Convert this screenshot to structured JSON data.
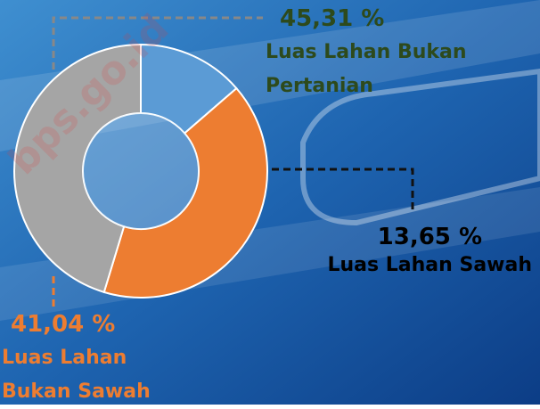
{
  "chart_data": {
    "type": "pie",
    "donut": true,
    "series": [
      {
        "name": "Luas Lahan Sawah",
        "color": "#5b9bd5",
        "values": [
          13.65
        ],
        "value_labels": [
          "13,65 %"
        ],
        "label_color": "#000000"
      },
      {
        "name": "Luas Lahan Bukan Sawah",
        "color": "#ed7d31",
        "values": [
          41.04
        ],
        "value_labels": [
          "41,04 %"
        ],
        "label_color": "#ed7d31"
      },
      {
        "name": "Luas Lahan Bukan Pertanian",
        "color": "#a5a5a5",
        "values": [
          45.31
        ],
        "value_labels": [
          "45,31 %"
        ],
        "label_color": "#2d4a1c"
      }
    ],
    "watermark": "bps.go.id"
  }
}
